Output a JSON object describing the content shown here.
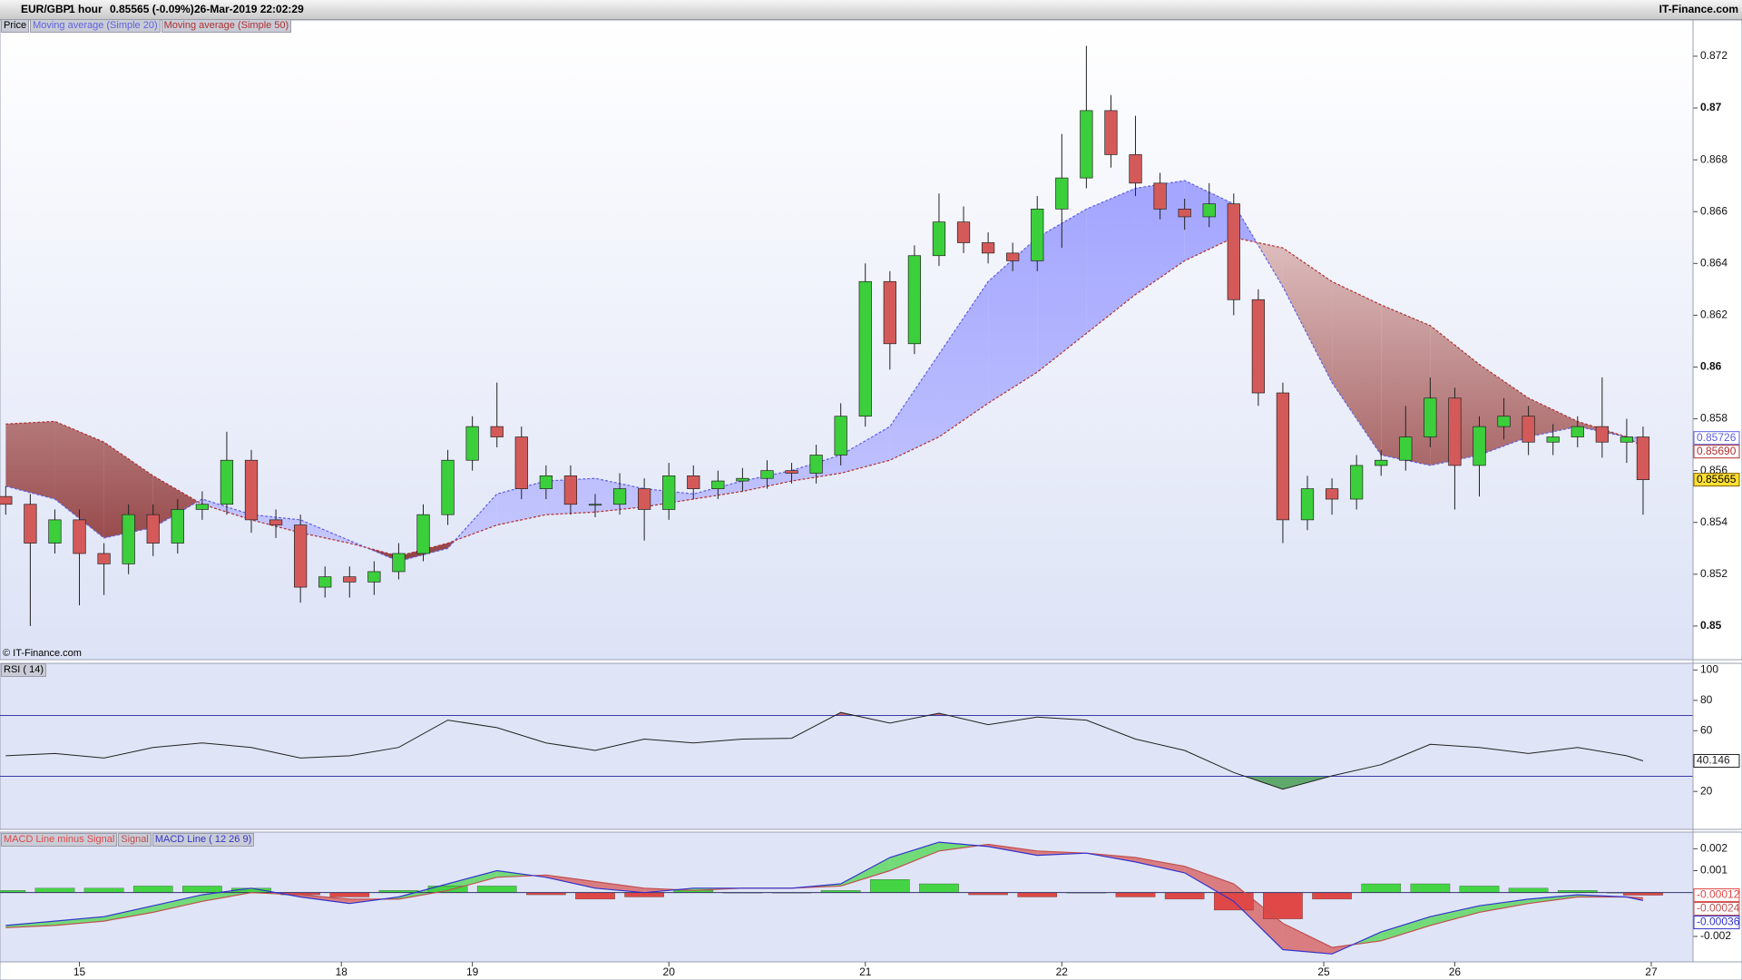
{
  "header": {
    "symbol": "EUR/GBP",
    "interval": "1 hour",
    "quote": "0.85565 (-0.09%)",
    "timestamp": "26-Mar-2019 22:02:29",
    "site": "IT-Finance.com",
    "copyright": "© IT-Finance.com"
  },
  "chart_data": [
    {
      "type": "candlestick",
      "name": "Price",
      "x": [
        0,
        3,
        6,
        9,
        12,
        15,
        18,
        21,
        24,
        27,
        30,
        33,
        36,
        39,
        42,
        45,
        48,
        51,
        54,
        57,
        60,
        63,
        66,
        69,
        72,
        75,
        78,
        81,
        84,
        87,
        90,
        93,
        96,
        99,
        102,
        105,
        108,
        111,
        114,
        117,
        120,
        123,
        126,
        129,
        132,
        135,
        138,
        141,
        144,
        147,
        150,
        153,
        156,
        159,
        162,
        165,
        168,
        171,
        174,
        177,
        180,
        183,
        186,
        189,
        192,
        195,
        198,
        200
      ],
      "open": [
        0.855,
        0.8547,
        0.8532,
        0.8541,
        0.8528,
        0.8524,
        0.8543,
        0.8532,
        0.8545,
        0.8547,
        0.8564,
        0.8541,
        0.8539,
        0.8515,
        0.8519,
        0.8517,
        0.8521,
        0.8528,
        0.8543,
        0.8564,
        0.8577,
        0.8573,
        0.8553,
        0.8558,
        0.8547,
        0.8547,
        0.8553,
        0.8545,
        0.8558,
        0.8553,
        0.8556,
        0.8557,
        0.856,
        0.8559,
        0.8566,
        0.8581,
        0.8633,
        0.8609,
        0.8643,
        0.8656,
        0.8648,
        0.8644,
        0.8641,
        0.8661,
        0.8673,
        0.8699,
        0.8682,
        0.8671,
        0.8661,
        0.8658,
        0.8663,
        0.8626,
        0.859,
        0.8541,
        0.8553,
        0.8549,
        0.8562,
        0.8564,
        0.8573,
        0.8588,
        0.8562,
        0.8577,
        0.8581,
        0.8571,
        0.8573,
        0.8577,
        0.8571,
        0.8573
      ],
      "high": [
        0.8554,
        0.8551,
        0.8545,
        0.8545,
        0.8532,
        0.8547,
        0.8547,
        0.8549,
        0.8552,
        0.8575,
        0.8568,
        0.8545,
        0.8543,
        0.8523,
        0.8523,
        0.8525,
        0.8532,
        0.8547,
        0.8568,
        0.8581,
        0.8594,
        0.8577,
        0.8562,
        0.8562,
        0.8551,
        0.8559,
        0.8557,
        0.8563,
        0.8562,
        0.856,
        0.8561,
        0.8564,
        0.8563,
        0.857,
        0.8586,
        0.864,
        0.8637,
        0.8647,
        0.8667,
        0.8662,
        0.8652,
        0.8648,
        0.8666,
        0.869,
        0.8724,
        0.8705,
        0.8697,
        0.8675,
        0.8665,
        0.8671,
        0.8667,
        0.863,
        0.8594,
        0.8558,
        0.8557,
        0.8566,
        0.8568,
        0.8585,
        0.8596,
        0.8592,
        0.8581,
        0.8588,
        0.8585,
        0.8578,
        0.8581,
        0.8596,
        0.858,
        0.8577
      ],
      "low": [
        0.8543,
        0.85,
        0.8528,
        0.8508,
        0.8512,
        0.852,
        0.8527,
        0.8528,
        0.8541,
        0.8543,
        0.8536,
        0.8534,
        0.8509,
        0.8511,
        0.8511,
        0.8512,
        0.8518,
        0.8525,
        0.8539,
        0.856,
        0.8569,
        0.8549,
        0.8549,
        0.8543,
        0.8542,
        0.8543,
        0.8533,
        0.8541,
        0.8549,
        0.8549,
        0.8552,
        0.8553,
        0.8555,
        0.8555,
        0.8562,
        0.8577,
        0.8599,
        0.8605,
        0.8639,
        0.8644,
        0.864,
        0.8637,
        0.8637,
        0.8646,
        0.8669,
        0.8677,
        0.8666,
        0.8657,
        0.8653,
        0.8654,
        0.862,
        0.8585,
        0.8532,
        0.8537,
        0.8543,
        0.8545,
        0.8558,
        0.856,
        0.8569,
        0.8545,
        0.855,
        0.8572,
        0.8566,
        0.8566,
        0.8569,
        0.8565,
        0.8563,
        0.8543
      ],
      "close": [
        0.8547,
        0.8532,
        0.8541,
        0.8528,
        0.8524,
        0.8543,
        0.8532,
        0.8545,
        0.8547,
        0.8564,
        0.8541,
        0.8539,
        0.8515,
        0.8519,
        0.8517,
        0.8521,
        0.8528,
        0.8543,
        0.8564,
        0.8577,
        0.8573,
        0.8553,
        0.8558,
        0.8547,
        0.8547,
        0.8553,
        0.8545,
        0.8558,
        0.8553,
        0.8556,
        0.8557,
        0.856,
        0.8559,
        0.8566,
        0.8581,
        0.8633,
        0.8609,
        0.8643,
        0.8656,
        0.8648,
        0.8644,
        0.8641,
        0.8661,
        0.8673,
        0.8699,
        0.8682,
        0.8671,
        0.8661,
        0.8658,
        0.8663,
        0.8626,
        0.859,
        0.8541,
        0.8553,
        0.8549,
        0.8562,
        0.8564,
        0.8573,
        0.8588,
        0.8562,
        0.8577,
        0.8581,
        0.8571,
        0.8573,
        0.8577,
        0.8571,
        0.8573,
        0.85565
      ],
      "up_color": "#3ccf3c",
      "down_color": "#d45a5a",
      "overlays": [
        {
          "name": "Moving average (Simple 20)",
          "color": "#6060e0",
          "x": [
            0,
            6,
            12,
            18,
            24,
            30,
            36,
            42,
            48,
            54,
            60,
            66,
            72,
            78,
            84,
            90,
            96,
            102,
            108,
            114,
            120,
            126,
            132,
            138,
            144,
            150,
            156,
            162,
            168,
            174,
            180,
            186,
            192,
            198,
            200
          ],
          "values": [
            0.8554,
            0.8549,
            0.8534,
            0.8538,
            0.8549,
            0.8543,
            0.8541,
            0.8533,
            0.8525,
            0.853,
            0.8551,
            0.8556,
            0.8557,
            0.8553,
            0.8551,
            0.8556,
            0.856,
            0.8566,
            0.8577,
            0.8605,
            0.8633,
            0.865,
            0.8661,
            0.8669,
            0.8672,
            0.8663,
            0.8631,
            0.8594,
            0.8566,
            0.8562,
            0.8566,
            0.8573,
            0.8577,
            0.8573,
            0.85726
          ]
        },
        {
          "name": "Moving average (Simple 50)",
          "color": "#b03030",
          "x": [
            0,
            6,
            12,
            18,
            24,
            30,
            36,
            42,
            48,
            54,
            60,
            66,
            72,
            78,
            84,
            90,
            96,
            102,
            108,
            114,
            120,
            126,
            132,
            138,
            144,
            150,
            156,
            162,
            168,
            174,
            180,
            186,
            192,
            198,
            200
          ],
          "values": [
            0.8578,
            0.8579,
            0.8571,
            0.8558,
            0.8547,
            0.8541,
            0.8536,
            0.8532,
            0.8527,
            0.8532,
            0.8539,
            0.8543,
            0.8544,
            0.8546,
            0.8549,
            0.8552,
            0.8556,
            0.8559,
            0.8564,
            0.8573,
            0.8586,
            0.8598,
            0.8613,
            0.8628,
            0.8641,
            0.865,
            0.8646,
            0.8633,
            0.8624,
            0.8616,
            0.8601,
            0.8588,
            0.8579,
            0.8573,
            0.8569
          ],
          "value_labels": [
            null,
            null,
            null,
            null,
            null,
            null,
            null,
            null,
            null,
            null,
            null,
            null,
            null,
            null,
            null,
            null,
            null,
            null,
            null,
            null,
            null,
            null,
            null,
            null,
            null,
            null,
            null,
            null,
            null,
            null,
            null,
            null,
            null,
            null,
            "0.85690"
          ]
        }
      ],
      "xlim": [
        -0.7,
        206.1
      ],
      "ylim": [
        0.8487,
        0.8734
      ],
      "yticks": [
        0.85,
        0.852,
        0.854,
        0.856,
        0.858,
        0.86,
        0.862,
        0.864,
        0.866,
        0.868,
        0.87,
        0.872
      ]
    },
    {
      "type": "line",
      "title": "RSI ( 14)",
      "color": "#222222",
      "x": [
        0,
        6,
        12,
        18,
        24,
        30,
        36,
        42,
        48,
        54,
        60,
        66,
        72,
        78,
        84,
        90,
        96,
        102,
        108,
        114,
        120,
        126,
        132,
        138,
        144,
        150,
        156,
        162,
        168,
        174,
        180,
        186,
        192,
        198,
        200
      ],
      "values": [
        43.5,
        45,
        42,
        49,
        52,
        49,
        42,
        43.5,
        49,
        67,
        62,
        52,
        47,
        54.5,
        52,
        54.5,
        55,
        72,
        65,
        71.5,
        64,
        69,
        67,
        54.5,
        47,
        32.5,
        21.5,
        30.3,
        37.6,
        51,
        49,
        45,
        49,
        43.5,
        40.146
      ],
      "levels": [
        70,
        30
      ],
      "level_color": "#3a3aa8",
      "xlim": [
        -0.7,
        206.1
      ],
      "ylim": [
        -5,
        104.4
      ],
      "yticks": [
        20,
        60,
        80,
        100
      ]
    },
    {
      "type": "macd",
      "x": [
        0,
        6,
        12,
        18,
        24,
        30,
        36,
        42,
        48,
        54,
        60,
        66,
        72,
        78,
        84,
        90,
        96,
        102,
        108,
        114,
        120,
        126,
        132,
        138,
        144,
        150,
        156,
        162,
        168,
        174,
        180,
        186,
        192,
        198,
        200
      ],
      "series": [
        {
          "name": "MACD Line minus Signal",
          "color": "#44d444",
          "negative_color": "#e04848",
          "values": [
            0.0001,
            0.0002,
            0.0002,
            0.0003,
            0.0003,
            0.0002,
            -0.0001,
            -0.0002,
            0.0001,
            0.0003,
            0.0003,
            -0.0001,
            -0.0003,
            -0.0002,
            0.0001,
            0,
            0,
            0.0001,
            0.0006,
            0.0004,
            -0.0001,
            -0.0002,
            0,
            -0.0002,
            -0.0003,
            -0.0008,
            -0.0012,
            -0.0003,
            0.0004,
            0.0004,
            0.0003,
            0.0002,
            0.0001,
            0,
            -0.00012
          ]
        },
        {
          "name": "Signal",
          "color": "#c05050",
          "values": [
            -0.0016,
            -0.0015,
            -0.0013,
            -0.0009,
            -0.0004,
            0,
            -0.0001,
            -0.0003,
            -0.0003,
            0.0001,
            0.0007,
            0.0008,
            0.0005,
            0.0002,
            0.0001,
            0.0002,
            0.0002,
            0.0003,
            0.001,
            0.0019,
            0.0022,
            0.0019,
            0.0018,
            0.0016,
            0.0012,
            0.0004,
            -0.0014,
            -0.0025,
            -0.0022,
            -0.0015,
            -0.0009,
            -0.0005,
            -0.0002,
            -0.0002,
            -0.00024
          ]
        },
        {
          "name": "MACD Line ( 12 26 9)",
          "color": "#3333cc",
          "values": [
            -0.0015,
            -0.0013,
            -0.0011,
            -0.0006,
            -0.0001,
            0.0002,
            -0.0002,
            -0.0005,
            -0.0002,
            0.0004,
            0.001,
            0.0007,
            0.0002,
            0,
            0.0002,
            0.0002,
            0.0002,
            0.0004,
            0.0016,
            0.0023,
            0.0021,
            0.0017,
            0.0018,
            0.0014,
            0.0009,
            -0.0004,
            -0.0026,
            -0.0028,
            -0.0018,
            -0.0011,
            -0.0006,
            -0.0003,
            -0.0001,
            -0.0002,
            -0.00036
          ]
        }
      ],
      "xlim": [
        -0.7,
        206.1
      ],
      "ylim": [
        -0.00316,
        0.00276
      ],
      "yticks": [
        0.002,
        0.001,
        -0.001,
        -0.002
      ],
      "xticks": [
        {
          "value": 9,
          "label": "15"
        },
        {
          "value": 41,
          "label": "18"
        },
        {
          "value": 57,
          "label": "19"
        },
        {
          "value": 81,
          "label": "20"
        },
        {
          "value": 105,
          "label": "21"
        },
        {
          "value": 129,
          "label": "22"
        },
        {
          "value": 161,
          "label": "25"
        },
        {
          "value": 177,
          "label": "26"
        },
        {
          "value": 201,
          "label": "27"
        }
      ]
    }
  ]
}
